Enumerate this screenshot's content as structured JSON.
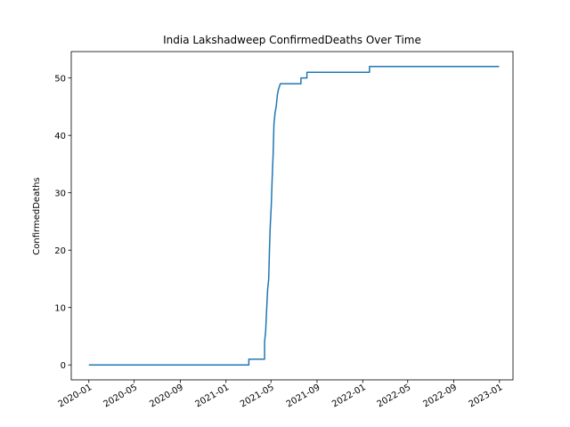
{
  "chart_data": {
    "type": "line",
    "title": "India Lakshadweep ConfirmedDeaths Over Time",
    "xlabel": "",
    "ylabel": "ConfirmedDeaths",
    "x_is_date": true,
    "xlim": [
      "2019-11-15",
      "2023-02-06"
    ],
    "ylim": [
      -2.6,
      54.6
    ],
    "grid": false,
    "x_ticks": [
      "2020-01-01",
      "2020-05-01",
      "2020-09-01",
      "2021-01-01",
      "2021-05-01",
      "2021-09-01",
      "2022-01-01",
      "2022-05-01",
      "2022-09-01",
      "2023-01-01"
    ],
    "x_tick_labels": [
      "2020-01",
      "2020-05",
      "2020-09",
      "2021-01",
      "2021-05",
      "2021-09",
      "2022-01",
      "2022-05",
      "2022-09",
      "2023-01"
    ],
    "y_ticks": [
      0,
      10,
      20,
      30,
      40,
      50
    ],
    "y_tick_labels": [
      "0",
      "10",
      "20",
      "30",
      "40",
      "50"
    ],
    "series": [
      {
        "color": "#1f77b4",
        "step": true,
        "points": [
          [
            "2020-01-01",
            0
          ],
          [
            "2021-03-03",
            0
          ],
          [
            "2021-03-03",
            1
          ],
          [
            "2021-04-14",
            1
          ],
          [
            "2021-04-14",
            4
          ],
          [
            "2021-04-17",
            6
          ],
          [
            "2021-04-19",
            9
          ],
          [
            "2021-04-22",
            13
          ],
          [
            "2021-04-25",
            15
          ],
          [
            "2021-04-27",
            20
          ],
          [
            "2021-04-29",
            24
          ],
          [
            "2021-05-02",
            28
          ],
          [
            "2021-05-04",
            32
          ],
          [
            "2021-05-07",
            37
          ],
          [
            "2021-05-09",
            42
          ],
          [
            "2021-05-12",
            44
          ],
          [
            "2021-05-15",
            45
          ],
          [
            "2021-05-18",
            47
          ],
          [
            "2021-05-21",
            48
          ],
          [
            "2021-05-26",
            49
          ],
          [
            "2021-07-20",
            49
          ],
          [
            "2021-07-20",
            50
          ],
          [
            "2021-08-05",
            50
          ],
          [
            "2021-08-05",
            51
          ],
          [
            "2022-01-19",
            51
          ],
          [
            "2022-01-19",
            52
          ],
          [
            "2022-12-31",
            52
          ]
        ]
      }
    ]
  }
}
